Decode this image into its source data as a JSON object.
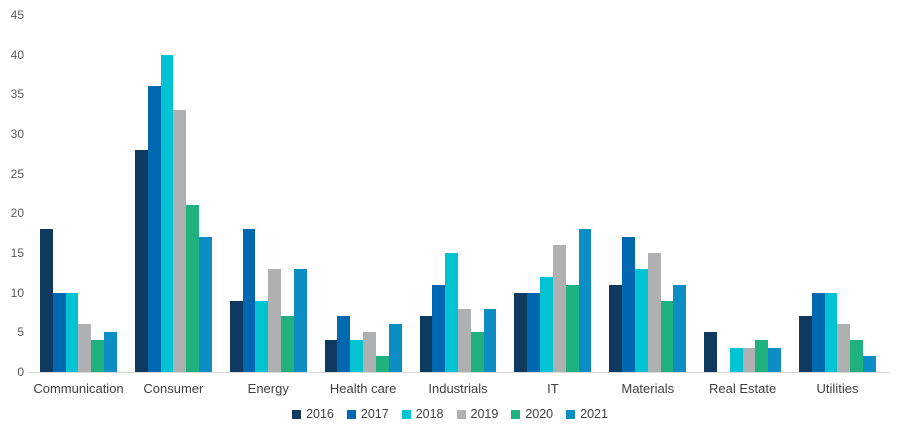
{
  "chart_data": {
    "type": "bar",
    "title": "",
    "xlabel": "",
    "ylabel": "",
    "grid": false,
    "legend_position": "bottom",
    "ylim": [
      0,
      45
    ],
    "ytick_step": 5,
    "categories": [
      "Communication",
      "Consumer",
      "Energy",
      "Health care",
      "Industrials",
      "IT",
      "Materials",
      "Real Estate",
      "Utilities"
    ],
    "series": [
      {
        "name": "2016",
        "color": "#0e3a5f",
        "values": [
          18,
          28,
          9,
          4,
          7,
          10,
          11,
          5,
          7
        ]
      },
      {
        "name": "2017",
        "color": "#0068b0",
        "values": [
          10,
          36,
          18,
          7,
          11,
          10,
          17,
          0,
          10
        ]
      },
      {
        "name": "2018",
        "color": "#00c4d4",
        "values": [
          10,
          40,
          9,
          4,
          15,
          12,
          13,
          3,
          10
        ]
      },
      {
        "name": "2019",
        "color": "#aeb0b2",
        "values": [
          6,
          33,
          13,
          5,
          8,
          16,
          15,
          3,
          6
        ]
      },
      {
        "name": "2020",
        "color": "#1fb27e",
        "values": [
          4,
          21,
          7,
          2,
          5,
          11,
          9,
          4,
          4
        ]
      },
      {
        "name": "2021",
        "color": "#0c8dc4",
        "values": [
          5,
          17,
          13,
          6,
          8,
          18,
          11,
          3,
          2
        ]
      }
    ]
  },
  "y_axis": {
    "tick_labels": [
      "0",
      "5",
      "10",
      "15",
      "20",
      "25",
      "30",
      "35",
      "40",
      "45"
    ]
  },
  "style": {
    "axis_line_color": "#d9d9d9",
    "tick_text_color": "#595959",
    "label_text_color": "#404040",
    "background": "#ffffff"
  }
}
